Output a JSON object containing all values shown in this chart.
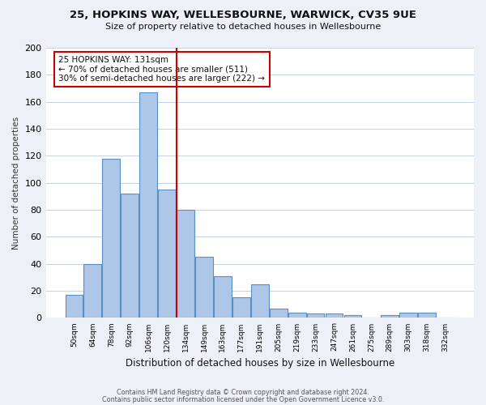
{
  "title1": "25, HOPKINS WAY, WELLESBOURNE, WARWICK, CV35 9UE",
  "title2": "Size of property relative to detached houses in Wellesbourne",
  "xlabel": "Distribution of detached houses by size in Wellesbourne",
  "ylabel": "Number of detached properties",
  "footer1": "Contains HM Land Registry data © Crown copyright and database right 2024.",
  "footer2": "Contains public sector information licensed under the Open Government Licence v3.0.",
  "annotation_line1": "25 HOPKINS WAY: 131sqm",
  "annotation_line2": "← 70% of detached houses are smaller (511)",
  "annotation_line3": "30% of semi-detached houses are larger (222) →",
  "bar_labels": [
    "50sqm",
    "64sqm",
    "78sqm",
    "92sqm",
    "106sqm",
    "120sqm",
    "134sqm",
    "149sqm",
    "163sqm",
    "177sqm",
    "191sqm",
    "205sqm",
    "219sqm",
    "233sqm",
    "247sqm",
    "261sqm",
    "275sqm",
    "289sqm",
    "303sqm",
    "318sqm",
    "332sqm"
  ],
  "bar_values": [
    17,
    40,
    118,
    92,
    167,
    95,
    80,
    45,
    31,
    15,
    25,
    7,
    4,
    3,
    3,
    2,
    0,
    2,
    4,
    4,
    0
  ],
  "bar_color": "#aec6e8",
  "bar_edge_color": "#5a8fc3",
  "vline_color": "#cc0000",
  "ylim": [
    0,
    200
  ],
  "yticks": [
    0,
    20,
    40,
    60,
    80,
    100,
    120,
    140,
    160,
    180,
    200
  ],
  "bg_color": "#edf1f7",
  "plot_bg_color": "#ffffff",
  "grid_color": "#c8d4e3"
}
